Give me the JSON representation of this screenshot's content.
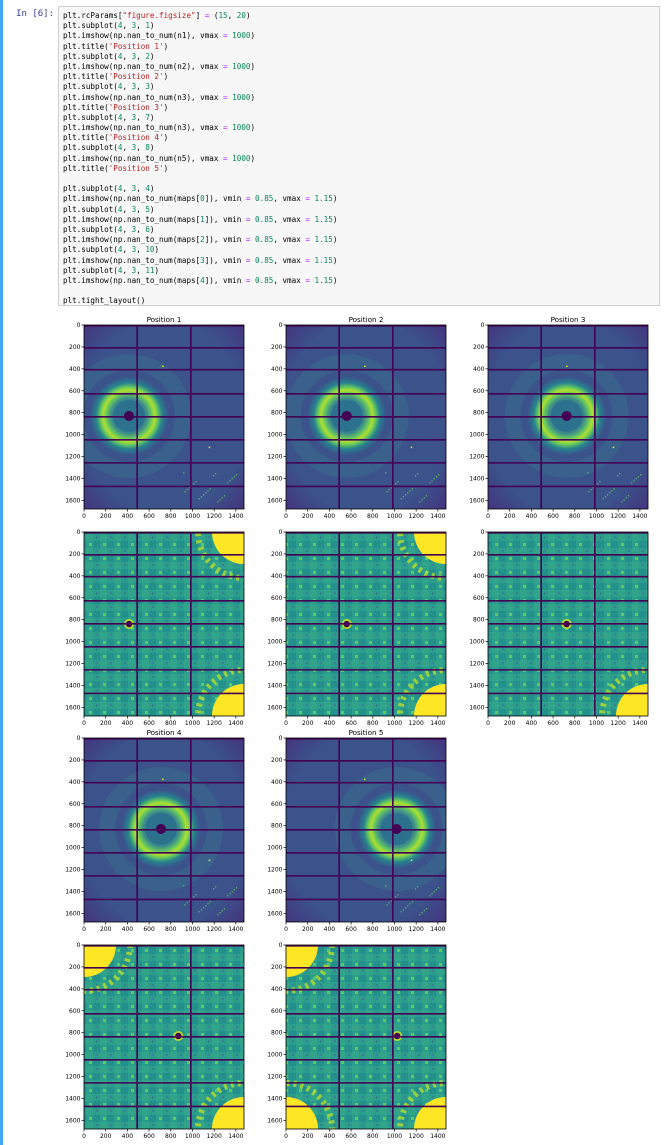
{
  "notebook": {
    "prompt": "In [6]:",
    "code_lines": [
      "plt.rcParams[\"figure.figsize\"] = (15, 20)",
      "plt.subplot(4, 3, 1)",
      "plt.imshow(np.nan_to_num(n1), vmax = 1000)",
      "plt.title('Position 1')",
      "plt.subplot(4, 3, 2)",
      "plt.imshow(np.nan_to_num(n2), vmax = 1000)",
      "plt.title('Position 2')",
      "plt.subplot(4, 3, 3)",
      "plt.imshow(np.nan_to_num(n3), vmax = 1000)",
      "plt.title('Position 3')",
      "plt.subplot(4, 3, 7)",
      "plt.imshow(np.nan_to_num(n3), vmax = 1000)",
      "plt.title('Position 4')",
      "plt.subplot(4, 3, 8)",
      "plt.imshow(np.nan_to_num(n5), vmax = 1000)",
      "plt.title('Position 5')",
      "",
      "plt.subplot(4, 3, 4)",
      "plt.imshow(np.nan_to_num(maps[0]), vmin = 0.85, vmax = 1.15)",
      "plt.subplot(4, 3, 5)",
      "plt.imshow(np.nan_to_num(maps[1]), vmin = 0.85, vmax = 1.15)",
      "plt.subplot(4, 3, 6)",
      "plt.imshow(np.nan_to_num(maps[2]), vmin = 0.85, vmax = 1.15)",
      "plt.subplot(4, 3, 10)",
      "plt.imshow(np.nan_to_num(maps[3]), vmin = 0.85, vmax = 1.15)",
      "plt.subplot(4, 3, 11)",
      "plt.imshow(np.nan_to_num(maps[4]), vmin = 0.85, vmax = 1.15)",
      "",
      "plt.tight_layout()"
    ]
  },
  "colors": {
    "bg": "#440154",
    "mid": "#3b528b",
    "teal": "#21918c",
    "green": "#5ec962",
    "yellow": "#fde725"
  },
  "chart_data": {
    "type": "heatmap",
    "x_ticks": [
      "0",
      "200",
      "400",
      "600",
      "800",
      "1000",
      "1200",
      "1400"
    ],
    "y_ticks": [
      "0",
      "200",
      "400",
      "600",
      "800",
      "1000",
      "1200",
      "1400",
      "1600"
    ],
    "xlim": [
      0,
      1475
    ],
    "ylim": [
      1679,
      0
    ],
    "panels": [
      {
        "kind": "pattern",
        "title": "Position 1",
        "center_x": 415,
        "center_y": 830,
        "vmax": 1000
      },
      {
        "kind": "pattern",
        "title": "Position 2",
        "center_x": 560,
        "center_y": 830,
        "vmax": 1000
      },
      {
        "kind": "pattern",
        "title": "Position 3",
        "center_x": 725,
        "center_y": 830,
        "vmax": 1000
      },
      {
        "kind": "map",
        "title": "",
        "center_x": 415,
        "center_y": 840,
        "corners": [
          "top-right",
          "bottom-right"
        ],
        "vmin": 0.85,
        "vmax": 1.15
      },
      {
        "kind": "map",
        "title": "",
        "center_x": 560,
        "center_y": 840,
        "corners": [
          "top-right",
          "bottom-right"
        ],
        "vmin": 0.85,
        "vmax": 1.15
      },
      {
        "kind": "map",
        "title": "",
        "center_x": 725,
        "center_y": 840,
        "corners": [
          "bottom-right"
        ],
        "vmin": 0.85,
        "vmax": 1.15
      },
      {
        "kind": "pattern",
        "title": "Position 4",
        "center_x": 710,
        "center_y": 830,
        "vmax": 1000
      },
      {
        "kind": "pattern",
        "title": "Position 5",
        "center_x": 1020,
        "center_y": 830,
        "vmax": 1000
      },
      {
        "kind": "map",
        "title": "",
        "center_x": 870,
        "center_y": 830,
        "corners": [
          "top-left",
          "bottom-right"
        ],
        "vmin": 0.85,
        "vmax": 1.15
      },
      {
        "kind": "map",
        "title": "",
        "center_x": 1025,
        "center_y": 830,
        "corners": [
          "top-left",
          "bottom-left",
          "bottom-right"
        ],
        "vmin": 0.85,
        "vmax": 1.15
      }
    ]
  }
}
